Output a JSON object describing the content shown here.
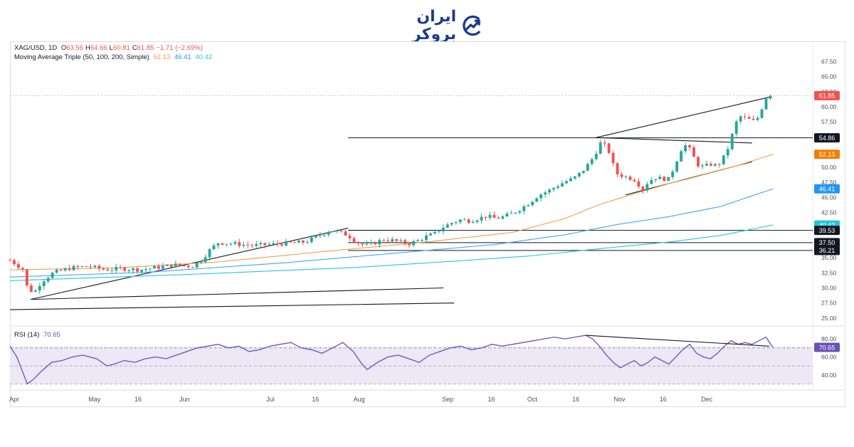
{
  "logo": {
    "text": "ایران بروکر",
    "icon": "chart-growth-icon"
  },
  "header": {
    "symbol": "XAG/USD, 1D",
    "ohlc": [
      {
        "k": "O",
        "v": "63.56"
      },
      {
        "k": "H",
        "v": "64.66"
      },
      {
        "k": "L",
        "v": "60.81"
      },
      {
        "k": "C",
        "v": "61.85"
      },
      {
        "k": "",
        "v": "−1.71 (−2.69%)"
      }
    ],
    "ma_label": "Moving Average Triple (50, 100, 200, Simple)",
    "ma_values": [
      "52.13",
      "46.41",
      "40.42"
    ]
  },
  "rsi": {
    "label": "RSI (14)",
    "value": "70.65"
  },
  "colors": {
    "up": "#26a69a",
    "down": "#ef5350",
    "ma50": "#f0a04b",
    "ma100": "#42a5f5",
    "ma200": "#26c6da",
    "rsi": "#6a50b8",
    "rsi_band": "#ede7f6",
    "text": "#131722"
  },
  "chart_data": [
    {
      "type": "candlestick",
      "title": "XAG/USD, 1D",
      "x_ticks": [
        "Apr",
        "May",
        "16",
        "Jun",
        "Jul",
        "16",
        "Aug",
        "Sep",
        "16",
        "Oct",
        "16",
        "Nov",
        "16",
        "Dec"
      ],
      "y_ticks": [
        "25.00",
        "27.50",
        "30.00",
        "32.50",
        "35.00",
        "37.50",
        "40.00",
        "42.50",
        "45.00",
        "47.50",
        "50.00",
        "52.50",
        "55.00",
        "57.50",
        "60.00",
        "62.50",
        "65.00",
        "67.50"
      ],
      "ylim": [
        24.4,
        69.2
      ],
      "grid": false,
      "series": [
        {
          "name": "Moving Average Triple (50, 100, 200, Simple)",
          "values_last": [
            "52.13",
            "46.41",
            "40.42"
          ]
        }
      ],
      "price_labels": [
        {
          "value": "61.85",
          "color": "#ef5350"
        },
        {
          "value": "54.86",
          "color": "#131722"
        },
        {
          "value": "52.13",
          "color": "#f57c00"
        },
        {
          "value": "46.41",
          "color": "#2196f3"
        },
        {
          "value": "40.42",
          "color": "#26c6da"
        },
        {
          "value": "39.53",
          "color": "#131722"
        },
        {
          "value": "37.50",
          "color": "#131722"
        },
        {
          "value": "36.21",
          "color": "#131722"
        }
      ],
      "horizontal_levels": [
        54.86,
        39.53,
        37.5,
        36.21
      ],
      "close_path": [
        [
          0,
          34.6
        ],
        [
          8,
          33.0
        ],
        [
          10,
          30.0
        ],
        [
          14,
          29.2
        ],
        [
          18,
          31.0
        ],
        [
          25,
          32.5
        ],
        [
          35,
          33.3
        ],
        [
          45,
          33.6
        ],
        [
          55,
          33.0
        ],
        [
          65,
          33.2
        ],
        [
          75,
          33.0
        ],
        [
          85,
          33.4
        ],
        [
          95,
          33.8
        ],
        [
          105,
          33.6
        ],
        [
          110,
          34.5
        ],
        [
          115,
          36.2
        ],
        [
          120,
          37.5
        ],
        [
          130,
          37.3
        ],
        [
          140,
          37.0
        ],
        [
          150,
          37.2
        ],
        [
          160,
          37.4
        ],
        [
          170,
          37.6
        ],
        [
          175,
          38.2
        ],
        [
          180,
          38.9
        ],
        [
          185,
          39.6
        ],
        [
          190,
          39.2
        ],
        [
          195,
          38.7
        ],
        [
          200,
          37.6
        ],
        [
          205,
          37.0
        ],
        [
          210,
          37.4
        ],
        [
          215,
          38.0
        ],
        [
          220,
          37.9
        ],
        [
          225,
          37.6
        ],
        [
          230,
          37.3
        ],
        [
          235,
          37.8
        ],
        [
          240,
          38.5
        ],
        [
          245,
          39.0
        ],
        [
          250,
          40.1
        ],
        [
          255,
          40.8
        ],
        [
          260,
          41.3
        ],
        [
          265,
          41.1
        ],
        [
          270,
          41.5
        ],
        [
          275,
          41.9
        ],
        [
          280,
          41.5
        ],
        [
          285,
          41.8
        ],
        [
          290,
          42.4
        ],
        [
          295,
          43.2
        ],
        [
          300,
          44.2
        ],
        [
          305,
          45.4
        ],
        [
          310,
          46.0
        ],
        [
          315,
          46.8
        ],
        [
          320,
          47.6
        ],
        [
          325,
          48.1
        ],
        [
          330,
          49.3
        ],
        [
          335,
          51.0
        ],
        [
          338,
          52.5
        ],
        [
          341,
          54.2
        ],
        [
          345,
          53.0
        ],
        [
          347,
          51.0
        ],
        [
          350,
          48.9
        ],
        [
          355,
          48.4
        ],
        [
          360,
          48.0
        ],
        [
          363,
          47.0
        ],
        [
          365,
          46.3
        ],
        [
          368,
          47.6
        ],
        [
          372,
          48.3
        ],
        [
          376,
          48.1
        ],
        [
          380,
          48.0
        ],
        [
          383,
          50.0
        ],
        [
          387,
          52.9
        ],
        [
          390,
          53.7
        ],
        [
          393,
          52.6
        ],
        [
          396,
          50.5
        ],
        [
          400,
          50.0
        ],
        [
          404,
          50.5
        ],
        [
          408,
          50.2
        ],
        [
          412,
          51.8
        ],
        [
          415,
          53.7
        ],
        [
          418,
          57.0
        ],
        [
          421,
          58.4
        ],
        [
          425,
          58.0
        ],
        [
          429,
          57.6
        ],
        [
          432,
          58.4
        ],
        [
          435,
          61.0
        ],
        [
          438,
          62.5
        ],
        [
          440,
          61.85
        ]
      ],
      "ma50_path": [
        [
          0,
          33.0
        ],
        [
          60,
          33.3
        ],
        [
          120,
          34.3
        ],
        [
          180,
          36.0
        ],
        [
          240,
          37.6
        ],
        [
          290,
          39.2
        ],
        [
          320,
          41.5
        ],
        [
          340,
          43.8
        ],
        [
          360,
          45.6
        ],
        [
          390,
          48.1
        ],
        [
          420,
          50.3
        ],
        [
          440,
          52.13
        ]
      ],
      "ma100_path": [
        [
          0,
          31.8
        ],
        [
          80,
          32.6
        ],
        [
          160,
          34.2
        ],
        [
          220,
          35.7
        ],
        [
          280,
          37.2
        ],
        [
          320,
          38.8
        ],
        [
          350,
          40.5
        ],
        [
          380,
          41.8
        ],
        [
          410,
          43.5
        ],
        [
          440,
          46.41
        ]
      ],
      "ma200_path": [
        [
          0,
          31.2
        ],
        [
          100,
          32.2
        ],
        [
          200,
          33.4
        ],
        [
          260,
          34.5
        ],
        [
          300,
          35.3
        ],
        [
          340,
          36.5
        ],
        [
          380,
          37.6
        ],
        [
          410,
          38.7
        ],
        [
          440,
          40.42
        ]
      ],
      "trend_lines": [
        {
          "from": [
            12,
            28.1
          ],
          "to": [
            195,
            39.9
          ]
        },
        {
          "from": [
            12,
            28.1
          ],
          "to": [
            250,
            30.0
          ]
        },
        {
          "from": [
            0,
            26.4
          ],
          "to": [
            256,
            27.5
          ]
        },
        {
          "from": [
            338,
            54.9
          ],
          "to": [
            438,
            61.6
          ]
        },
        {
          "from": [
            338,
            54.9
          ],
          "to": [
            428,
            54.0
          ]
        },
        {
          "from": [
            355,
            45.4
          ],
          "to": [
            428,
            50.9
          ]
        },
        {
          "from": [
            195,
            39.55
          ],
          "to": [
            250,
            39.55
          ]
        }
      ]
    },
    {
      "type": "line",
      "title": "RSI (14)",
      "y_ticks": [
        "40.00",
        "60.00",
        "80.00"
      ],
      "ylim": [
        28,
        88
      ],
      "bands": [
        30,
        50,
        70
      ],
      "last_value": "70.65",
      "values_path": [
        [
          0,
          72
        ],
        [
          4,
          60
        ],
        [
          8,
          40
        ],
        [
          10,
          30
        ],
        [
          14,
          36
        ],
        [
          18,
          44
        ],
        [
          24,
          54
        ],
        [
          30,
          56
        ],
        [
          36,
          60
        ],
        [
          42,
          62
        ],
        [
          50,
          58
        ],
        [
          56,
          50
        ],
        [
          60,
          52
        ],
        [
          66,
          56
        ],
        [
          72,
          54
        ],
        [
          78,
          58
        ],
        [
          84,
          60
        ],
        [
          90,
          58
        ],
        [
          96,
          62
        ],
        [
          102,
          66
        ],
        [
          108,
          70
        ],
        [
          114,
          72
        ],
        [
          120,
          74
        ],
        [
          126,
          70
        ],
        [
          132,
          72
        ],
        [
          138,
          66
        ],
        [
          144,
          68
        ],
        [
          150,
          72
        ],
        [
          156,
          74
        ],
        [
          162,
          76
        ],
        [
          168,
          70
        ],
        [
          174,
          68
        ],
        [
          180,
          64
        ],
        [
          186,
          70
        ],
        [
          192,
          76
        ],
        [
          198,
          66
        ],
        [
          203,
          52
        ],
        [
          206,
          46
        ],
        [
          212,
          54
        ],
        [
          218,
          60
        ],
        [
          224,
          62
        ],
        [
          230,
          58
        ],
        [
          236,
          54
        ],
        [
          242,
          62
        ],
        [
          248,
          66
        ],
        [
          254,
          70
        ],
        [
          260,
          72
        ],
        [
          266,
          68
        ],
        [
          272,
          70
        ],
        [
          278,
          74
        ],
        [
          284,
          72
        ],
        [
          290,
          74
        ],
        [
          296,
          76
        ],
        [
          302,
          78
        ],
        [
          308,
          80
        ],
        [
          314,
          82
        ],
        [
          320,
          80
        ],
        [
          326,
          82
        ],
        [
          332,
          84
        ],
        [
          336,
          80
        ],
        [
          340,
          72
        ],
        [
          344,
          62
        ],
        [
          348,
          54
        ],
        [
          352,
          48
        ],
        [
          356,
          52
        ],
        [
          360,
          56
        ],
        [
          364,
          50
        ],
        [
          368,
          54
        ],
        [
          372,
          60
        ],
        [
          376,
          56
        ],
        [
          380,
          52
        ],
        [
          384,
          60
        ],
        [
          388,
          68
        ],
        [
          392,
          74
        ],
        [
          396,
          64
        ],
        [
          400,
          60
        ],
        [
          404,
          58
        ],
        [
          408,
          64
        ],
        [
          412,
          72
        ],
        [
          416,
          78
        ],
        [
          420,
          74
        ],
        [
          424,
          76
        ],
        [
          428,
          74
        ],
        [
          432,
          78
        ],
        [
          436,
          82
        ],
        [
          440,
          70.65
        ]
      ],
      "divergence_line": {
        "from": [
          332,
          84
        ],
        "to": [
          438,
          72
        ]
      }
    }
  ]
}
